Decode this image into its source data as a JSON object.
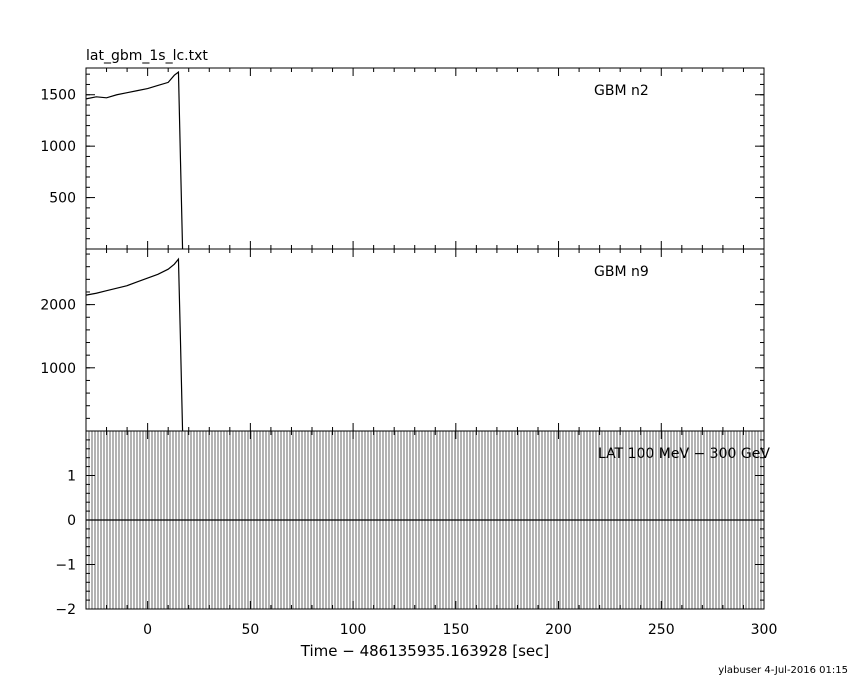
{
  "chart_data": {
    "type": "line",
    "title": "lat_gbm_1s_lc.txt",
    "xlabel": "Time − 486135935.163928 [sec]",
    "xlim": [
      -30,
      300
    ],
    "xticks": [
      0,
      50,
      100,
      150,
      200,
      250,
      300
    ],
    "footer": "ylabuser   4-Jul-2016 01:15",
    "panels": [
      {
        "label": "GBM n2",
        "ylim": [
          0,
          1760
        ],
        "yticks": [
          500,
          1000,
          1500
        ],
        "series": [
          {
            "x": [
              -30,
              -25,
              -20,
              -15,
              -10,
              -5,
              0,
              5,
              10,
              13,
              15,
              16,
              17
            ],
            "y": [
              1460,
              1480,
              1470,
              1500,
              1520,
              1540,
              1560,
              1590,
              1620,
              1690,
              1720,
              850,
              0
            ]
          }
        ]
      },
      {
        "label": "GBM n9",
        "ylim": [
          0,
          2880
        ],
        "yticks": [
          1000,
          2000
        ],
        "series": [
          {
            "x": [
              -30,
              -25,
              -20,
              -15,
              -10,
              -5,
              0,
              5,
              10,
              13,
              15,
              16,
              17
            ],
            "y": [
              2150,
              2180,
              2220,
              2260,
              2300,
              2360,
              2420,
              2480,
              2560,
              2640,
              2720,
              1400,
              0
            ]
          }
        ]
      },
      {
        "label": "LAT 100 MeV − 300 GeV",
        "ylim": [
          -2,
          2
        ],
        "yticks": [
          -2,
          -1,
          0,
          1
        ],
        "series": [
          {
            "x": [
              -30,
              300
            ],
            "y": [
              0,
              0
            ]
          }
        ]
      }
    ]
  }
}
